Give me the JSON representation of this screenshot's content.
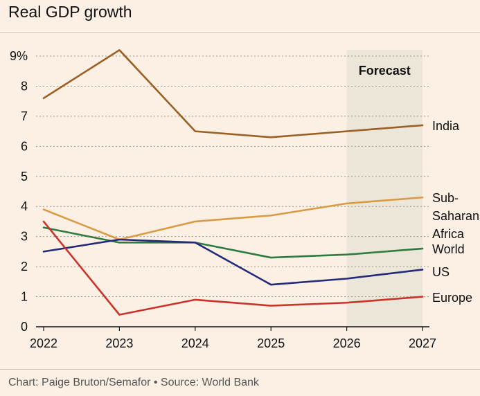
{
  "title": "Real GDP growth",
  "credit": "Chart: Paige Bruton/Semafor • Source: World Bank",
  "forecast_label": "Forecast",
  "colors": {
    "background": "#fbf0e3",
    "forecast_band": "#ece6d9",
    "India": "#9a5f24",
    "Sub-Saharan Africa": "#d89a45",
    "World": "#2f7a3f",
    "US": "#232a7a",
    "Europe": "#c9332a"
  },
  "chart_data": {
    "type": "line",
    "title": "Real GDP growth",
    "x": [
      "2022",
      "2023",
      "2024",
      "2025",
      "2026",
      "2027"
    ],
    "ylim": [
      0,
      9
    ],
    "yticks": [
      "0",
      "1",
      "2",
      "3",
      "4",
      "5",
      "6",
      "7",
      "8",
      "9%"
    ],
    "grid": true,
    "forecast_range": [
      "2026",
      "2027"
    ],
    "series": [
      {
        "name": "India",
        "label_lines": [
          "India"
        ],
        "values": [
          7.6,
          9.2,
          6.5,
          6.3,
          6.5,
          6.7
        ]
      },
      {
        "name": "Sub-Saharan Africa",
        "label_lines": [
          "Sub-",
          "Saharan",
          "Africa"
        ],
        "values": [
          3.9,
          2.9,
          3.5,
          3.7,
          4.1,
          4.3
        ]
      },
      {
        "name": "World",
        "label_lines": [
          "World"
        ],
        "values": [
          3.3,
          2.8,
          2.8,
          2.3,
          2.4,
          2.6
        ]
      },
      {
        "name": "US",
        "label_lines": [
          "US"
        ],
        "values": [
          2.5,
          2.9,
          2.8,
          1.4,
          1.6,
          1.9
        ]
      },
      {
        "name": "Europe",
        "label_lines": [
          "Europe"
        ],
        "values": [
          3.5,
          0.4,
          0.9,
          0.7,
          0.8,
          1.0
        ]
      }
    ]
  }
}
